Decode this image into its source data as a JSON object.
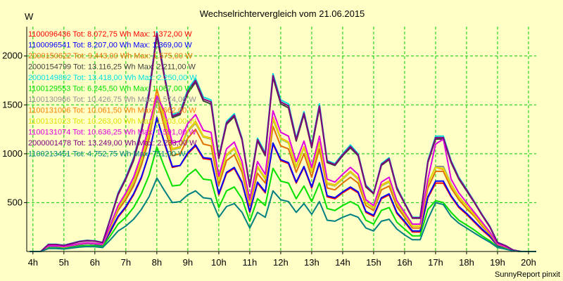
{
  "chart_data": {
    "type": "line",
    "title": "Wechselrichtervergleich vom 21.06.2015",
    "ylabel": "W",
    "footer": "SunnyReport pinxit",
    "xlim": [
      3.8,
      20.25
    ],
    "ylim": [
      0,
      2300
    ],
    "yticks": [
      500,
      1000,
      1500,
      2000
    ],
    "xticks": [
      "4h",
      "5h",
      "6h",
      "7h",
      "8h",
      "9h",
      "10h",
      "11h",
      "12h",
      "13h",
      "14h",
      "15h",
      "16h",
      "17h",
      "18h",
      "19h",
      "20h"
    ],
    "grid": true,
    "legend_position": "top-left",
    "x": [
      3.9,
      4.0,
      4.25,
      4.5,
      4.75,
      5.0,
      5.25,
      5.5,
      5.75,
      6.0,
      6.25,
      6.5,
      6.75,
      7.0,
      7.25,
      7.5,
      7.75,
      8.0,
      8.25,
      8.5,
      8.75,
      9.0,
      9.25,
      9.5,
      9.75,
      10.0,
      10.25,
      10.5,
      10.75,
      11.0,
      11.25,
      11.5,
      11.75,
      12.0,
      12.25,
      12.5,
      12.75,
      13.0,
      13.25,
      13.5,
      13.75,
      14.0,
      14.25,
      14.5,
      14.75,
      15.0,
      15.25,
      15.5,
      15.75,
      16.0,
      16.25,
      16.5,
      16.75,
      17.0,
      17.25,
      17.5,
      17.75,
      18.0,
      18.25,
      18.5,
      18.75,
      19.0,
      19.25,
      19.5,
      19.75,
      20.0,
      20.25
    ],
    "series": [
      {
        "name": "1100096436 Tot: 8.072,75 Wh Max: 1.372,00 W",
        "color": "#FF0000",
        "values": [
          0,
          0,
          0,
          50,
          50,
          40,
          55,
          70,
          80,
          75,
          60,
          200,
          350,
          450,
          580,
          750,
          1000,
          1372,
          1100,
          860,
          880,
          1000,
          1080,
          950,
          940,
          580,
          800,
          850,
          700,
          400,
          700,
          600,
          1100,
          930,
          900,
          700,
          860,
          650,
          900,
          560,
          540,
          600,
          650,
          600,
          400,
          360,
          540,
          580,
          390,
          300,
          200,
          200,
          550,
          700,
          700,
          560,
          450,
          380,
          300,
          220,
          150,
          60,
          40,
          10,
          0,
          0,
          0
        ]
      },
      {
        "name": "1100096541 Tot: 8.207,00 Wh Max: 1.369,00 W",
        "color": "#0000FF",
        "values": [
          0,
          0,
          0,
          50,
          50,
          40,
          55,
          70,
          80,
          75,
          60,
          210,
          360,
          460,
          590,
          760,
          1000,
          1369,
          1110,
          870,
          880,
          1010,
          1090,
          960,
          950,
          590,
          810,
          860,
          710,
          410,
          710,
          610,
          1110,
          940,
          910,
          710,
          870,
          660,
          910,
          570,
          550,
          610,
          660,
          610,
          410,
          370,
          550,
          590,
          400,
          310,
          210,
          210,
          560,
          720,
          720,
          570,
          460,
          390,
          310,
          230,
          160,
          60,
          40,
          10,
          0,
          0,
          0
        ]
      },
      {
        "name": "2000150622 Tot: 9.443,00 Wh Max: 1.575,00 W",
        "color": "#E07000",
        "values": [
          0,
          0,
          0,
          55,
          55,
          45,
          60,
          75,
          85,
          80,
          70,
          240,
          420,
          530,
          670,
          880,
          1150,
          1575,
          1270,
          980,
          1000,
          1160,
          1250,
          1100,
          1080,
          680,
          930,
          990,
          810,
          470,
          800,
          700,
          1280,
          1080,
          1050,
          810,
          1000,
          760,
          1050,
          650,
          630,
          700,
          760,
          700,
          470,
          420,
          630,
          670,
          460,
          350,
          240,
          240,
          650,
          820,
          820,
          650,
          530,
          440,
          360,
          260,
          180,
          70,
          45,
          12,
          0,
          0,
          0
        ]
      },
      {
        "name": "2000154799 Tot: 13.116,25 Wh Max: 2.211,00 W",
        "color": "#404040",
        "values": [
          0,
          0,
          0,
          70,
          70,
          60,
          80,
          100,
          110,
          105,
          90,
          330,
          580,
          740,
          930,
          1220,
          1600,
          2211,
          1770,
          1370,
          1400,
          1620,
          1730,
          1540,
          1510,
          950,
          1300,
          1380,
          1140,
          660,
          1130,
          980,
          1780,
          1510,
          1470,
          1130,
          1400,
          1060,
          1470,
          910,
          880,
          980,
          1060,
          980,
          660,
          590,
          880,
          940,
          640,
          490,
          340,
          340,
          910,
          1150,
          1150,
          910,
          740,
          620,
          500,
          370,
          250,
          90,
          60,
          15,
          0,
          0,
          0
        ]
      },
      {
        "name": "2000149892 Tot: 13.418,00 Wh Max: 2.250,00 W",
        "color": "#00E0E0",
        "values": [
          0,
          0,
          0,
          75,
          75,
          65,
          85,
          105,
          115,
          110,
          95,
          340,
          600,
          760,
          960,
          1250,
          1640,
          2250,
          1800,
          1400,
          1430,
          1660,
          1770,
          1580,
          1550,
          970,
          1330,
          1410,
          1160,
          680,
          1160,
          1010,
          1820,
          1550,
          1510,
          1160,
          1430,
          1090,
          1510,
          930,
          900,
          1000,
          1090,
          1000,
          680,
          600,
          900,
          960,
          660,
          500,
          350,
          350,
          930,
          1180,
          1180,
          930,
          760,
          640,
          510,
          380,
          260,
          95,
          62,
          16,
          0,
          0,
          0
        ]
      },
      {
        "name": "1100129553 Tot: 6.245,50 Wh Max: 1.067,00 W",
        "color": "#00E000",
        "values": [
          0,
          0,
          0,
          35,
          35,
          30,
          40,
          55,
          60,
          58,
          50,
          160,
          280,
          350,
          450,
          590,
          780,
          1067,
          860,
          670,
          680,
          780,
          840,
          740,
          730,
          450,
          620,
          660,
          540,
          310,
          540,
          470,
          850,
          720,
          700,
          540,
          670,
          510,
          700,
          440,
          420,
          470,
          510,
          470,
          320,
          280,
          420,
          450,
          300,
          230,
          160,
          160,
          430,
          520,
          500,
          400,
          320,
          270,
          220,
          160,
          110,
          45,
          30,
          8,
          0,
          0,
          0
        ]
      },
      {
        "name": "1100130966 Tot: 10.426,75 Wh Max: 1.574,00 W",
        "color": "#909090",
        "values": [
          0,
          0,
          0,
          55,
          55,
          45,
          60,
          75,
          85,
          80,
          70,
          250,
          440,
          560,
          700,
          920,
          1200,
          1574,
          1340,
          1040,
          1060,
          1230,
          1310,
          1170,
          1150,
          720,
          980,
          1050,
          860,
          500,
          860,
          740,
          1350,
          1150,
          1110,
          860,
          1060,
          810,
          1110,
          690,
          670,
          740,
          810,
          740,
          500,
          440,
          670,
          710,
          490,
          370,
          260,
          260,
          690,
          870,
          870,
          690,
          560,
          470,
          380,
          280,
          190,
          75,
          48,
          12,
          0,
          0,
          0
        ]
      },
      {
        "name": "1100131006 Tot: 10.061,50 Wh Max: 1.662,00 W",
        "color": "#FF8000",
        "values": [
          0,
          0,
          0,
          58,
          58,
          48,
          63,
          78,
          88,
          83,
          73,
          255,
          450,
          570,
          720,
          940,
          1230,
          1662,
          1360,
          1050,
          1070,
          1240,
          1330,
          1180,
          1160,
          730,
          990,
          1060,
          870,
          500,
          870,
          750,
          1370,
          1160,
          1120,
          870,
          1070,
          820,
          1120,
          700,
          680,
          750,
          820,
          750,
          500,
          450,
          680,
          720,
          500,
          380,
          260,
          260,
          700,
          860,
          840,
          680,
          560,
          470,
          380,
          280,
          190,
          75,
          48,
          12,
          0,
          0,
          0
        ]
      },
      {
        "name": "1100131023 Tot: 10.263,00 Wh Max: 1.603,00 W",
        "color": "#E0E000",
        "values": [
          0,
          0,
          0,
          56,
          56,
          46,
          61,
          76,
          86,
          81,
          71,
          250,
          445,
          565,
          710,
          930,
          1210,
          1603,
          1350,
          1045,
          1065,
          1235,
          1320,
          1175,
          1155,
          725,
          985,
          1055,
          865,
          500,
          865,
          745,
          1360,
          1155,
          1115,
          865,
          1065,
          815,
          1115,
          695,
          675,
          745,
          815,
          745,
          500,
          445,
          675,
          715,
          495,
          375,
          260,
          260,
          695,
          860,
          850,
          685,
          555,
          465,
          375,
          275,
          190,
          75,
          48,
          12,
          0,
          0,
          0
        ]
      },
      {
        "name": "1100131074 Tot: 10.636,25 Wh Max: 1.591,00 W",
        "color": "#E000E0",
        "values": [
          0,
          0,
          0,
          60,
          60,
          50,
          65,
          80,
          90,
          85,
          75,
          270,
          470,
          600,
          760,
          990,
          1290,
          1591,
          1430,
          1110,
          1130,
          1310,
          1400,
          1240,
          1220,
          770,
          1050,
          1120,
          920,
          530,
          920,
          790,
          1440,
          1220,
          1180,
          920,
          1130,
          860,
          1180,
          740,
          710,
          790,
          860,
          790,
          530,
          470,
          710,
          760,
          520,
          400,
          280,
          280,
          740,
          1100,
          1150,
          740,
          600,
          500,
          400,
          300,
          200,
          80,
          50,
          13,
          0,
          0,
          0
        ]
      },
      {
        "name": "2000001478 Tot: 13.249,00 Wh Max: 2.233,00 W",
        "color": "#800080",
        "values": [
          0,
          0,
          0,
          72,
          72,
          62,
          82,
          102,
          112,
          107,
          92,
          335,
          590,
          750,
          945,
          1235,
          1620,
          2233,
          1785,
          1385,
          1415,
          1640,
          1750,
          1560,
          1530,
          960,
          1315,
          1395,
          1150,
          670,
          1145,
          995,
          1800,
          1530,
          1490,
          1145,
          1415,
          1075,
          1490,
          920,
          890,
          990,
          1075,
          990,
          670,
          595,
          890,
          950,
          650,
          495,
          345,
          345,
          920,
          1165,
          1165,
          920,
          750,
          630,
          505,
          375,
          255,
          92,
          61,
          15,
          0,
          0,
          0
        ]
      },
      {
        "name": "1100213451 Tot: 4.752,75 Wh Max: 751,00 W",
        "color": "#008080",
        "values": [
          0,
          0,
          0,
          30,
          30,
          25,
          35,
          45,
          50,
          48,
          40,
          120,
          210,
          260,
          330,
          430,
          560,
          751,
          620,
          500,
          510,
          580,
          620,
          550,
          540,
          350,
          460,
          490,
          400,
          240,
          400,
          350,
          620,
          530,
          510,
          400,
          490,
          380,
          510,
          320,
          310,
          350,
          380,
          350,
          240,
          210,
          310,
          330,
          230,
          170,
          120,
          120,
          330,
          500,
          480,
          360,
          290,
          240,
          190,
          140,
          95,
          40,
          25,
          6,
          0,
          0,
          0
        ]
      }
    ]
  }
}
